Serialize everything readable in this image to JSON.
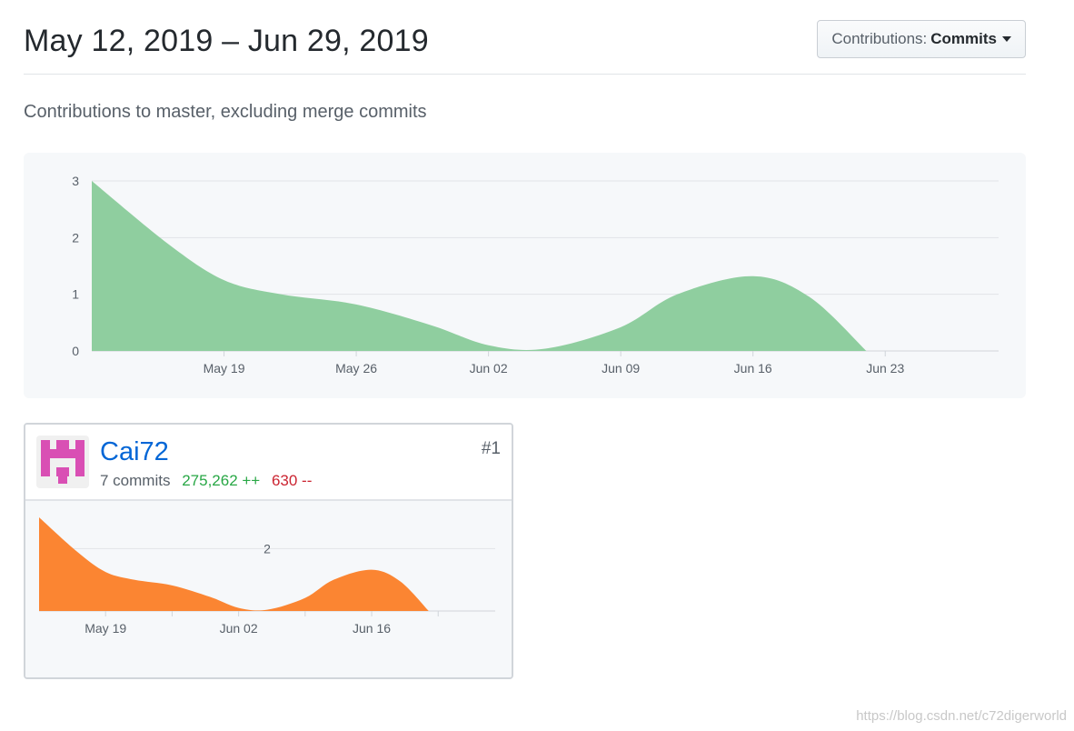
{
  "header": {
    "range_title": "May 12, 2019 – Jun 29, 2019",
    "contributions_prefix": "Contributions:",
    "contributions_selected": "Commits"
  },
  "subtitle": "Contributions to master, excluding merge commits",
  "colors": {
    "main_area": "#8fce9f",
    "contributor_area": "#fb8532",
    "avatar": "#d94fb4",
    "link": "#0366d6",
    "additions": "#28a745",
    "deletions": "#cb2431"
  },
  "chart_data": [
    {
      "type": "area",
      "x": [
        "2019-05-12",
        "2019-05-16",
        "2019-05-19",
        "2019-05-22",
        "2019-05-26",
        "2019-05-30",
        "2019-06-02",
        "2019-06-05",
        "2019-06-09",
        "2019-06-12",
        "2019-06-16",
        "2019-06-19",
        "2019-06-22"
      ],
      "series": [
        {
          "values": [
            3,
            1.9,
            1.25,
            1.0,
            0.82,
            0.45,
            0.1,
            0.04,
            0.42,
            1.0,
            1.32,
            0.95,
            0
          ]
        }
      ],
      "x_ticks": [
        "May 19",
        "May 26",
        "Jun 02",
        "Jun 09",
        "Jun 16",
        "Jun 23"
      ],
      "y_ticks": [
        "0",
        "1",
        "2",
        "3"
      ],
      "ylim": [
        0,
        3
      ],
      "xlim": [
        "2019-05-12",
        "2019-06-29"
      ],
      "grid": true
    },
    {
      "type": "area",
      "x": [
        "2019-05-12",
        "2019-05-16",
        "2019-05-19",
        "2019-05-22",
        "2019-05-26",
        "2019-05-30",
        "2019-06-02",
        "2019-06-05",
        "2019-06-09",
        "2019-06-12",
        "2019-06-16",
        "2019-06-19",
        "2019-06-22"
      ],
      "series": [
        {
          "values": [
            3,
            1.9,
            1.25,
            1.0,
            0.82,
            0.45,
            0.1,
            0.04,
            0.42,
            1.0,
            1.32,
            0.95,
            0
          ]
        }
      ],
      "x_ticks": [
        "May 19",
        "Jun 02",
        "Jun 16"
      ],
      "y_ticks": [
        "2"
      ],
      "ylim": [
        0,
        3
      ],
      "xlim": [
        "2019-05-12",
        "2019-06-29"
      ],
      "grid": true
    }
  ],
  "contributor": {
    "username": "Cai72",
    "rank": "#1",
    "commits": "7 commits",
    "additions": "275,262 ++",
    "deletions": "630 --"
  },
  "watermark": "https://blog.csdn.net/c72digerworld"
}
